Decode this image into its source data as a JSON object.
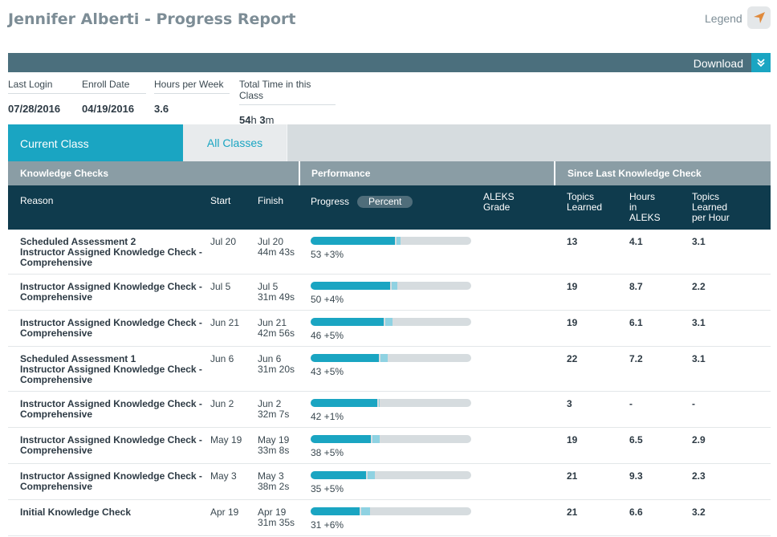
{
  "header": {
    "title": "Jennifer Alberti - Progress Report",
    "legend_label": "Legend",
    "download_label": "Download"
  },
  "stats": {
    "last_login_label": "Last Login",
    "last_login": "07/28/2016",
    "enroll_date_label": "Enroll Date",
    "enroll_date": "04/19/2016",
    "hours_per_week_label": "Hours per Week",
    "hours_per_week": "3.6",
    "total_time_label": "Total Time in this Class",
    "total_time_hours": "54",
    "total_time_hours_unit": "h",
    "total_time_minutes": "3",
    "total_time_minutes_unit": "m"
  },
  "tabs": {
    "current": "Current Class",
    "all": "All Classes"
  },
  "groups": {
    "knowledge_checks": "Knowledge Checks",
    "performance": "Performance",
    "since_last": "Since Last Knowledge Check"
  },
  "columns": {
    "reason": "Reason",
    "start": "Start",
    "finish": "Finish",
    "progress": "Progress",
    "percent": "Percent",
    "aleks_grade": "ALEKS\nGrade",
    "topics_learned": "Topics\nLearned",
    "hours_in_aleks": "Hours\nin\nALEKS",
    "topics_per_hour": "Topics\nLearned\nper Hour"
  },
  "colors": {
    "accent": "#1aa5c2",
    "gain": "#8fd2e2",
    "header_dark": "#0f3b4d",
    "group_bar": "#8a9da5",
    "download_bar": "#4b6f7d"
  },
  "rows": [
    {
      "reason": "Scheduled Assessment 2\nInstructor Assigned Knowledge Check -\nComprehensive",
      "start": "Jul 20",
      "finish_date": "Jul 20",
      "finish_time": "44m 43s",
      "base": 53,
      "gain": 3,
      "label": "53 +3%",
      "topics": "13",
      "hours": "4.1",
      "rate": "3.1"
    },
    {
      "reason": "Instructor Assigned Knowledge Check -\nComprehensive",
      "start": "Jul 5",
      "finish_date": "Jul 5",
      "finish_time": "31m 49s",
      "base": 50,
      "gain": 4,
      "label": "50 +4%",
      "topics": "19",
      "hours": "8.7",
      "rate": "2.2"
    },
    {
      "reason": "Instructor Assigned Knowledge Check -\nComprehensive",
      "start": "Jun 21",
      "finish_date": "Jun 21",
      "finish_time": "42m 56s",
      "base": 46,
      "gain": 5,
      "label": "46 +5%",
      "topics": "19",
      "hours": "6.1",
      "rate": "3.1"
    },
    {
      "reason": "Scheduled Assessment 1\nInstructor Assigned Knowledge Check -\nComprehensive",
      "start": "Jun 6",
      "finish_date": "Jun 6",
      "finish_time": "31m 20s",
      "base": 43,
      "gain": 5,
      "label": "43 +5%",
      "topics": "22",
      "hours": "7.2",
      "rate": "3.1"
    },
    {
      "reason": "Instructor Assigned Knowledge Check -\nComprehensive",
      "start": "Jun 2",
      "finish_date": "Jun 2",
      "finish_time": "32m 7s",
      "base": 42,
      "gain": 1,
      "label": "42 +1%",
      "topics": "3",
      "hours": "-",
      "rate": "-"
    },
    {
      "reason": "Instructor Assigned Knowledge Check -\nComprehensive",
      "start": "May 19",
      "finish_date": "May 19",
      "finish_time": "33m 8s",
      "base": 38,
      "gain": 5,
      "label": "38 +5%",
      "topics": "19",
      "hours": "6.5",
      "rate": "2.9"
    },
    {
      "reason": "Instructor Assigned Knowledge Check -\nComprehensive",
      "start": "May 3",
      "finish_date": "May 3",
      "finish_time": "38m 2s",
      "base": 35,
      "gain": 5,
      "label": "35 +5%",
      "topics": "21",
      "hours": "9.3",
      "rate": "2.3"
    },
    {
      "reason": "Initial Knowledge Check",
      "start": "Apr 19",
      "finish_date": "Apr 19",
      "finish_time": "31m 35s",
      "base": 31,
      "gain": 6,
      "label": "31 +6%",
      "topics": "21",
      "hours": "6.6",
      "rate": "3.2"
    }
  ]
}
